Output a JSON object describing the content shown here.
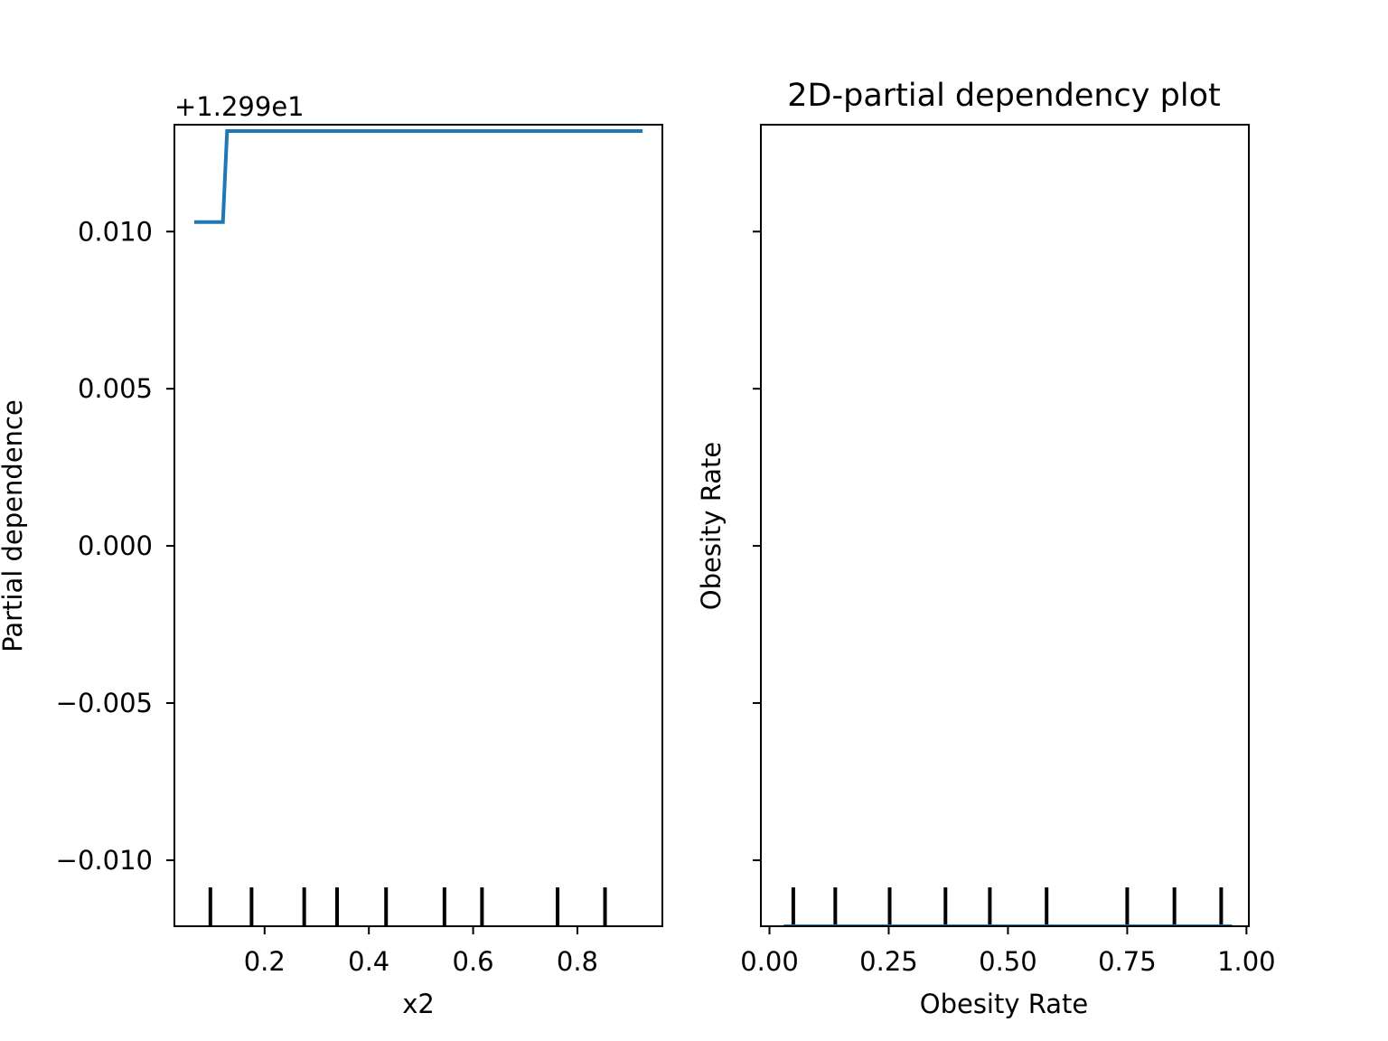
{
  "chart_data": [
    {
      "type": "line",
      "title": "",
      "xlabel": "x2",
      "ylabel": "Partial dependence",
      "offset_text": "+1.299e1",
      "xlim": [
        0.027,
        0.963
      ],
      "ylim": [
        -0.0121,
        0.0134
      ],
      "xticks": [
        0.2,
        0.4,
        0.6,
        0.8
      ],
      "xtick_labels": [
        "0.2",
        "0.4",
        "0.6",
        "0.8"
      ],
      "yticks": [
        -0.01,
        -0.005,
        0.0,
        0.005,
        0.01
      ],
      "ytick_labels": [
        "−0.010",
        "−0.005",
        "0.000",
        "0.005",
        "0.010"
      ],
      "line_color": "#1f77b4",
      "series": [
        {
          "x": [
            0.065,
            0.12,
            0.128,
            0.925
          ],
          "y": [
            0.0103,
            0.0103,
            0.0132,
            0.0132
          ]
        }
      ],
      "rug": [
        0.096,
        0.175,
        0.276,
        0.339,
        0.433,
        0.545,
        0.617,
        0.762,
        0.853
      ]
    },
    {
      "type": "line",
      "title": "2D-partial dependency plot",
      "xlabel": "Obesity Rate",
      "ylabel": "Obesity Rate",
      "xlim": [
        -0.018,
        1.005
      ],
      "xticks": [
        0.0,
        0.25,
        0.5,
        0.75,
        1.0
      ],
      "xtick_labels": [
        "0.00",
        "0.25",
        "0.50",
        "0.75",
        "1.00"
      ],
      "ytick_count": 5,
      "line_color": "#1f77b4",
      "series": [
        {
          "x": [
            0.03,
            0.97
          ],
          "y": [
            0,
            0
          ]
        }
      ],
      "rug": [
        0.05,
        0.138,
        0.252,
        0.369,
        0.462,
        0.581,
        0.75,
        0.849,
        0.947
      ]
    }
  ]
}
